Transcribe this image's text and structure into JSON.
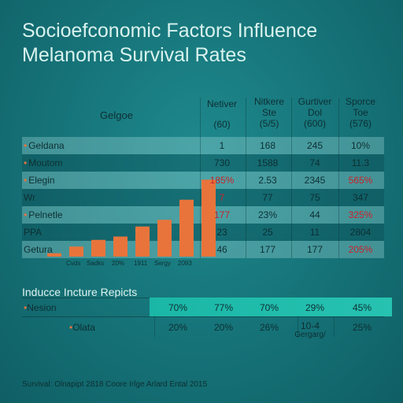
{
  "title_line1": "Socioefconomic Factors Influence",
  "title_line2": "Melanoma Survival Rates",
  "upper": {
    "label_header": "Gelgoe",
    "columns": [
      {
        "top": "Netiver",
        "bottom": "(60)"
      },
      {
        "top": "Nitkere",
        "mid": "Ste",
        "bottom": "(5/5)"
      },
      {
        "top": "Gurtiver",
        "mid": "Dol",
        "bottom": "(600)"
      },
      {
        "top": "Sporce",
        "mid": "Toe",
        "bottom": "(576)"
      }
    ],
    "rows": [
      {
        "label": "Geldana",
        "dot": true,
        "values": [
          "1",
          "168",
          "245",
          "10%"
        ],
        "red": [
          false,
          false,
          false,
          false
        ]
      },
      {
        "label": "Moutom",
        "dot": true,
        "values": [
          "730",
          "1588",
          "74",
          "11.3"
        ],
        "red": [
          false,
          false,
          false,
          false
        ]
      },
      {
        "label": "Elegin",
        "dot": true,
        "values": [
          "185%",
          "2.53",
          "2345",
          "565%"
        ],
        "red": [
          true,
          false,
          false,
          true
        ]
      },
      {
        "label": "Wr",
        "dot": false,
        "values": [
          "7",
          "77",
          "75",
          "347"
        ],
        "red": [
          true,
          false,
          false,
          false
        ]
      },
      {
        "label": "Pelnetle",
        "dot": true,
        "values": [
          "177",
          "23%",
          "44",
          "325%"
        ],
        "red": [
          true,
          false,
          false,
          true
        ]
      },
      {
        "label": "PPA",
        "dot": false,
        "values": [
          "23",
          "25",
          "11",
          "2804"
        ],
        "red": [
          false,
          false,
          false,
          false
        ]
      },
      {
        "label": "Getura",
        "dot": false,
        "values": [
          "46",
          "177",
          "177",
          "205%"
        ],
        "red": [
          false,
          false,
          false,
          true
        ]
      }
    ]
  },
  "chart_data": {
    "type": "bar",
    "categories": [
      "",
      "",
      "",
      "",
      "",
      "",
      "",
      ""
    ],
    "values": [
      1,
      3,
      5,
      6,
      9,
      11,
      17,
      23
    ],
    "x_tick_labels": [
      "Cvds",
      "Sadks",
      "20%",
      "1911",
      "Sergy",
      "2093"
    ],
    "color": "#e8743b",
    "ylim": [
      0,
      24
    ]
  },
  "lower": {
    "title": "Inducce Incture Repicts",
    "rows": [
      {
        "label": "Nesion",
        "dot": true,
        "values": [
          "70%",
          "77%",
          "70%",
          "29%",
          "45%"
        ]
      },
      {
        "label": "Olata",
        "dot": true,
        "values": [
          "20%",
          "20%",
          "26%",
          "10-4",
          "25%"
        ]
      }
    ],
    "sub_note": "Gergarg/"
  },
  "footer": "Survival: Olnapipt 2818 Coore Irlge Arlard Ental 2015",
  "colors": {
    "bar": "#e8743b",
    "band_teal": "#1bb7a6",
    "red_text": "#c8222a"
  }
}
